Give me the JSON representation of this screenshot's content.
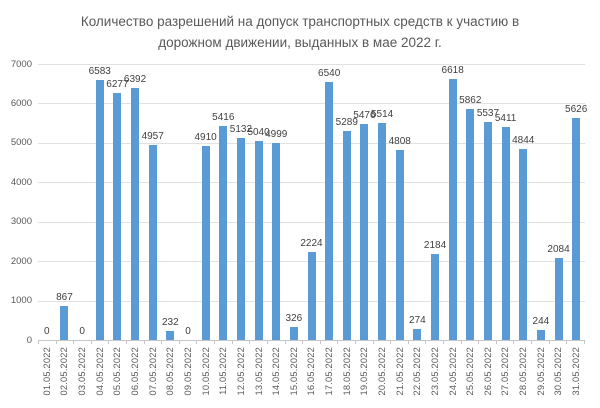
{
  "chart_data": {
    "type": "bar",
    "title": "Количество разрешений на допуск транспортных средств к участию в дорожном движении, выданных в мае 2022 г.",
    "title_lines": [
      "Количество разрешений на допуск транспортных средств к участию в",
      "дорожном движении, выданных в мае 2022 г."
    ],
    "categories": [
      "01.05.2022",
      "02.05.2022",
      "03.05.2022",
      "04.05.2022",
      "05.05.2022",
      "06.05.2022",
      "07.05.2022",
      "08.05.2022",
      "09.05.2022",
      "10.05.2022",
      "11.05.2022",
      "12.05.2022",
      "13.05.2022",
      "14.05.2022",
      "15.05.2022",
      "16.05.2022",
      "17.05.2022",
      "18.05.2022",
      "19.05.2022",
      "20.05.2022",
      "21.05.2022",
      "22.05.2022",
      "23.05.2022",
      "24.05.2022",
      "25.05.2022",
      "26.05.2022",
      "27.05.2022",
      "28.05.2022",
      "29.05.2022",
      "30.05.2022",
      "31.05.2022"
    ],
    "values": [
      0,
      867,
      0,
      6583,
      6277,
      6392,
      4957,
      232,
      0,
      4910,
      5416,
      5132,
      5040,
      4999,
      326,
      2224,
      6540,
      5289,
      5476,
      5514,
      4808,
      274,
      2184,
      6618,
      5862,
      5537,
      5411,
      4844,
      244,
      2084,
      5626
    ],
    "xlabel": "",
    "ylabel": "",
    "ylim": [
      0,
      7000
    ],
    "y_ticks": [
      0,
      1000,
      2000,
      3000,
      4000,
      5000,
      6000,
      7000
    ],
    "grid": true,
    "legend": "none",
    "data_labels": true,
    "colors": {
      "bar": "#5b9bd5",
      "gridline": "#e2e2e2",
      "axis_line": "#c6c6c6",
      "tick_text": "#595959",
      "value_label_text": "#404040",
      "title_text": "#595959"
    }
  }
}
